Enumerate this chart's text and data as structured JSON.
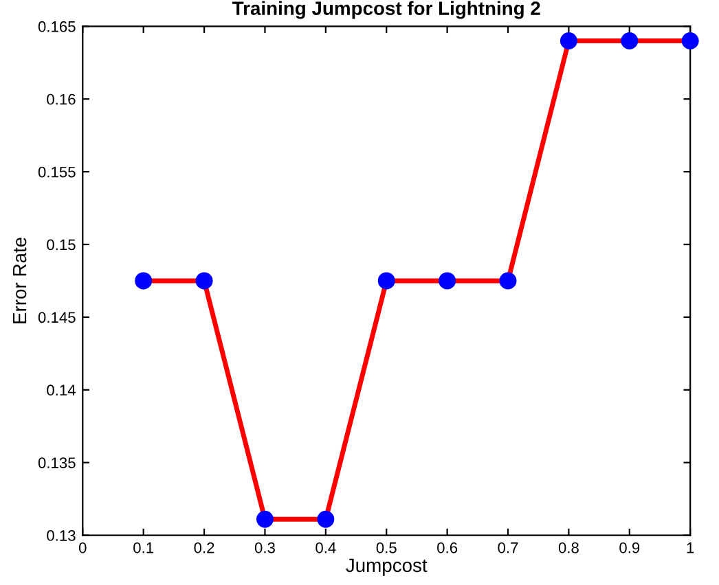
{
  "chart_data": {
    "type": "line",
    "title": "Training Jumpcost for Lightning 2",
    "xlabel": "Jumpcost",
    "ylabel": "Error Rate",
    "x": [
      0.1,
      0.2,
      0.3,
      0.4,
      0.5,
      0.6,
      0.7,
      0.8,
      0.9,
      1.0
    ],
    "series": [
      {
        "color": "#ff0000",
        "colors": [
          "#0000ff",
          "#0000ff",
          "#0000ff",
          "#0000ff",
          "#0000ff",
          "#0000ff",
          "#0000ff",
          "#0000ff",
          "#0000ff",
          "#0000ff"
        ],
        "values": [
          0.1475,
          0.1475,
          0.1311,
          0.1311,
          0.1475,
          0.1475,
          0.1475,
          0.164,
          0.164,
          0.164
        ]
      }
    ],
    "marker": "circle",
    "line_style": "solid",
    "xlim": [
      0,
      1
    ],
    "xticks": [
      0,
      0.1,
      0.2,
      0.3,
      0.4,
      0.5,
      0.6,
      0.7,
      0.8,
      0.9,
      1
    ],
    "ylim": [
      0.13,
      0.165
    ],
    "yticks": [
      0.13,
      0.135,
      0.14,
      0.145,
      0.15,
      0.155,
      0.16,
      0.165
    ],
    "grid": false,
    "legend": false
  }
}
